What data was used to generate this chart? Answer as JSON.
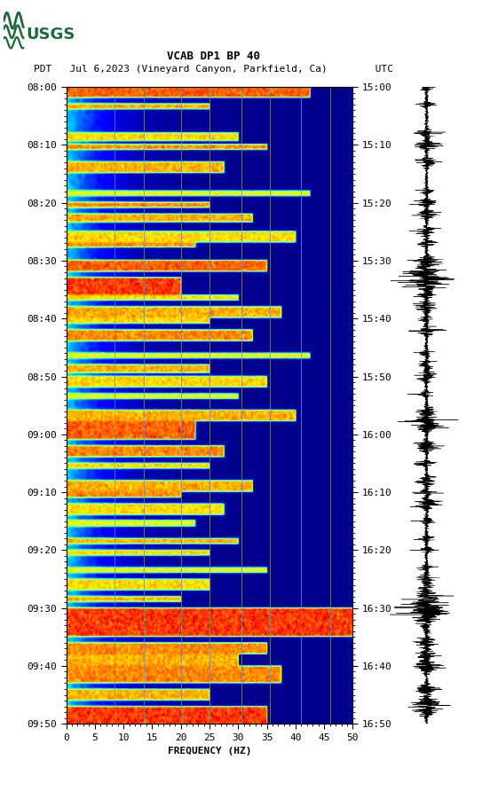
{
  "title_line1": "VCAB DP1 BP 40",
  "title_line2": "PDT   Jul 6,2023 (Vineyard Canyon, Parkfield, Ca)        UTC",
  "xlabel": "FREQUENCY (HZ)",
  "freq_min": 0,
  "freq_max": 50,
  "freq_ticks": [
    0,
    5,
    10,
    15,
    20,
    25,
    30,
    35,
    40,
    45,
    50
  ],
  "time_labels_left": [
    "08:00",
    "08:10",
    "08:20",
    "08:30",
    "08:40",
    "08:50",
    "09:00",
    "09:10",
    "09:20",
    "09:30",
    "09:40",
    "09:50"
  ],
  "time_labels_right": [
    "15:00",
    "15:10",
    "15:20",
    "15:30",
    "15:40",
    "15:50",
    "16:00",
    "16:10",
    "16:20",
    "16:30",
    "16:40",
    "16:50"
  ],
  "n_time_steps": 660,
  "n_freq_steps": 300,
  "vertical_lines_freq": [
    8.5,
    13.5,
    20.0,
    25.0,
    30.5,
    35.5,
    41.0,
    46.0
  ],
  "colormap": "jet",
  "fig_width": 5.52,
  "fig_height": 8.92,
  "background_color": "white",
  "usgs_logo_color": "#1a6b3a"
}
